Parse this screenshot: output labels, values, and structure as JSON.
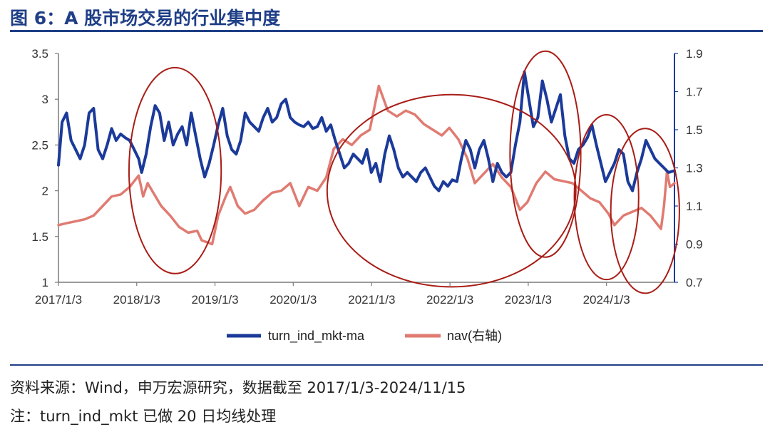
{
  "title": "图 6：A 股市场交易的行业集中度",
  "source_note": "资料来源：Wind，申万宏源研究，数据截至 2017/1/3-2024/11/15",
  "footnote": "注：turn_ind_mkt 已做 20 日均线处理",
  "colors": {
    "accent": "#1f3f87",
    "series1": "#1b3a9a",
    "series2": "#e07b72",
    "ellipse": "#a81d16"
  },
  "chart_data": {
    "type": "line",
    "x_ticks": [
      "2017/1/3",
      "2018/1/3",
      "2019/1/3",
      "2020/1/3",
      "2021/1/3",
      "2022/1/3",
      "2023/1/3",
      "2024/1/3"
    ],
    "xlim": [
      "2017/1/3",
      "2024/11/15"
    ],
    "y_left": {
      "ticks": [
        "1",
        "1.5",
        "2",
        "2.5",
        "3",
        "3.5"
      ],
      "lim": [
        1,
        3.5
      ]
    },
    "y_right": {
      "ticks": [
        "0.7",
        "0.9",
        "1.1",
        "1.3",
        "1.5",
        "1.7",
        "1.9"
      ],
      "lim": [
        0.7,
        1.9
      ]
    },
    "grid": false,
    "legend_position": "bottom",
    "series": [
      {
        "name": "turn_ind_mkt-ma",
        "axis": "left",
        "points": [
          [
            "2017/1/3",
            2.28
          ],
          [
            "2017/1/20",
            2.75
          ],
          [
            "2017/2/10",
            2.85
          ],
          [
            "2017/3/3",
            2.55
          ],
          [
            "2017/3/24",
            2.45
          ],
          [
            "2017/4/14",
            2.35
          ],
          [
            "2017/5/5",
            2.5
          ],
          [
            "2017/5/26",
            2.85
          ],
          [
            "2017/6/16",
            2.9
          ],
          [
            "2017/7/7",
            2.45
          ],
          [
            "2017/7/28",
            2.35
          ],
          [
            "2017/8/18",
            2.5
          ],
          [
            "2017/9/8",
            2.68
          ],
          [
            "2017/9/29",
            2.55
          ],
          [
            "2017/10/20",
            2.62
          ],
          [
            "2017/11/10",
            2.58
          ],
          [
            "2017/12/1",
            2.55
          ],
          [
            "2017/12/22",
            2.45
          ],
          [
            "2018/1/12",
            2.35
          ],
          [
            "2018/1/26",
            2.2
          ],
          [
            "2018/2/16",
            2.4
          ],
          [
            "2018/3/9",
            2.7
          ],
          [
            "2018/3/30",
            2.93
          ],
          [
            "2018/4/20",
            2.85
          ],
          [
            "2018/5/11",
            2.55
          ],
          [
            "2018/6/1",
            2.75
          ],
          [
            "2018/6/22",
            2.5
          ],
          [
            "2018/7/13",
            2.62
          ],
          [
            "2018/8/3",
            2.7
          ],
          [
            "2018/8/24",
            2.5
          ],
          [
            "2018/9/14",
            2.85
          ],
          [
            "2018/10/5",
            2.6
          ],
          [
            "2018/10/26",
            2.35
          ],
          [
            "2018/11/16",
            2.15
          ],
          [
            "2018/12/7",
            2.3
          ],
          [
            "2018/12/28",
            2.5
          ],
          [
            "2019/1/18",
            2.72
          ],
          [
            "2019/2/8",
            2.9
          ],
          [
            "2019/3/1",
            2.6
          ],
          [
            "2019/3/22",
            2.45
          ],
          [
            "2019/4/12",
            2.4
          ],
          [
            "2019/5/3",
            2.55
          ],
          [
            "2019/5/24",
            2.85
          ],
          [
            "2019/6/14",
            2.75
          ],
          [
            "2019/7/5",
            2.7
          ],
          [
            "2019/7/26",
            2.65
          ],
          [
            "2019/8/16",
            2.8
          ],
          [
            "2019/9/6",
            2.9
          ],
          [
            "2019/9/27",
            2.75
          ],
          [
            "2019/10/18",
            2.8
          ],
          [
            "2019/11/8",
            2.95
          ],
          [
            "2019/11/29",
            3.0
          ],
          [
            "2019/12/20",
            2.8
          ],
          [
            "2020/1/10",
            2.75
          ],
          [
            "2020/1/31",
            2.72
          ],
          [
            "2020/2/21",
            2.7
          ],
          [
            "2020/3/13",
            2.75
          ],
          [
            "2020/4/3",
            2.68
          ],
          [
            "2020/4/24",
            2.7
          ],
          [
            "2020/5/15",
            2.8
          ],
          [
            "2020/6/5",
            2.65
          ],
          [
            "2020/6/26",
            2.72
          ],
          [
            "2020/7/17",
            2.55
          ],
          [
            "2020/8/7",
            2.4
          ],
          [
            "2020/8/28",
            2.25
          ],
          [
            "2020/9/18",
            2.3
          ],
          [
            "2020/10/9",
            2.4
          ],
          [
            "2020/10/30",
            2.35
          ],
          [
            "2020/11/20",
            2.3
          ],
          [
            "2020/12/11",
            2.45
          ],
          [
            "2021/1/1",
            2.2
          ],
          [
            "2021/1/22",
            2.3
          ],
          [
            "2021/2/12",
            2.1
          ],
          [
            "2021/3/5",
            2.4
          ],
          [
            "2021/3/26",
            2.6
          ],
          [
            "2021/4/16",
            2.45
          ],
          [
            "2021/5/7",
            2.25
          ],
          [
            "2021/5/28",
            2.15
          ],
          [
            "2021/6/18",
            2.2
          ],
          [
            "2021/7/9",
            2.15
          ],
          [
            "2021/7/30",
            2.1
          ],
          [
            "2021/8/20",
            2.2
          ],
          [
            "2021/9/10",
            2.25
          ],
          [
            "2021/10/1",
            2.15
          ],
          [
            "2021/10/22",
            2.05
          ],
          [
            "2021/11/12",
            2.0
          ],
          [
            "2021/12/3",
            2.1
          ],
          [
            "2021/12/24",
            2.05
          ],
          [
            "2022/1/14",
            2.12
          ],
          [
            "2022/2/4",
            2.1
          ],
          [
            "2022/2/25",
            2.35
          ],
          [
            "2022/3/18",
            2.55
          ],
          [
            "2022/4/8",
            2.45
          ],
          [
            "2022/4/29",
            2.25
          ],
          [
            "2022/5/20",
            2.45
          ],
          [
            "2022/6/10",
            2.55
          ],
          [
            "2022/7/1",
            2.35
          ],
          [
            "2022/7/22",
            2.1
          ],
          [
            "2022/8/12",
            2.3
          ],
          [
            "2022/9/2",
            2.2
          ],
          [
            "2022/9/23",
            2.15
          ],
          [
            "2022/10/14",
            2.2
          ],
          [
            "2022/11/4",
            2.5
          ],
          [
            "2022/11/25",
            2.75
          ],
          [
            "2022/12/16",
            3.3
          ],
          [
            "2023/1/6",
            3.0
          ],
          [
            "2023/1/27",
            2.7
          ],
          [
            "2023/2/17",
            2.8
          ],
          [
            "2023/3/10",
            3.2
          ],
          [
            "2023/3/31",
            3.0
          ],
          [
            "2023/4/21",
            2.75
          ],
          [
            "2023/5/12",
            2.9
          ],
          [
            "2023/6/2",
            3.05
          ],
          [
            "2023/6/23",
            2.6
          ],
          [
            "2023/7/14",
            2.35
          ],
          [
            "2023/8/4",
            2.3
          ],
          [
            "2023/8/25",
            2.45
          ],
          [
            "2023/9/15",
            2.5
          ],
          [
            "2023/10/6",
            2.58
          ],
          [
            "2023/10/27",
            2.72
          ],
          [
            "2023/11/17",
            2.5
          ],
          [
            "2023/12/8",
            2.3
          ],
          [
            "2023/12/29",
            2.1
          ],
          [
            "2024/1/19",
            2.2
          ],
          [
            "2024/2/9",
            2.3
          ],
          [
            "2024/3/1",
            2.45
          ],
          [
            "2024/3/22",
            2.4
          ],
          [
            "2024/4/12",
            2.1
          ],
          [
            "2024/5/3",
            2.0
          ],
          [
            "2024/5/24",
            2.2
          ],
          [
            "2024/6/14",
            2.35
          ],
          [
            "2024/7/5",
            2.55
          ],
          [
            "2024/7/26",
            2.45
          ],
          [
            "2024/8/16",
            2.35
          ],
          [
            "2024/9/6",
            2.3
          ],
          [
            "2024/9/27",
            2.25
          ],
          [
            "2024/10/18",
            2.2
          ],
          [
            "2024/11/15",
            2.22
          ]
        ]
      },
      {
        "name": "nav(右轴)",
        "axis": "right",
        "points": [
          [
            "2017/1/3",
            1.0
          ],
          [
            "2017/2/10",
            1.01
          ],
          [
            "2017/3/24",
            1.02
          ],
          [
            "2017/5/5",
            1.03
          ],
          [
            "2017/6/16",
            1.05
          ],
          [
            "2017/7/28",
            1.1
          ],
          [
            "2017/9/8",
            1.15
          ],
          [
            "2017/10/20",
            1.16
          ],
          [
            "2017/12/1",
            1.2
          ],
          [
            "2018/1/12",
            1.26
          ],
          [
            "2018/2/2",
            1.15
          ],
          [
            "2018/2/23",
            1.22
          ],
          [
            "2018/3/16",
            1.18
          ],
          [
            "2018/4/27",
            1.1
          ],
          [
            "2018/6/8",
            1.05
          ],
          [
            "2018/7/20",
            0.99
          ],
          [
            "2018/8/31",
            0.96
          ],
          [
            "2018/10/12",
            0.97
          ],
          [
            "2018/11/2",
            0.92
          ],
          [
            "2018/12/21",
            0.9
          ],
          [
            "2019/1/18",
            1.05
          ],
          [
            "2019/2/22",
            1.15
          ],
          [
            "2019/3/15",
            1.2
          ],
          [
            "2019/4/19",
            1.1
          ],
          [
            "2019/5/24",
            1.06
          ],
          [
            "2019/7/5",
            1.08
          ],
          [
            "2019/8/16",
            1.13
          ],
          [
            "2019/9/27",
            1.17
          ],
          [
            "2019/11/8",
            1.18
          ],
          [
            "2019/12/20",
            1.22
          ],
          [
            "2020/1/31",
            1.1
          ],
          [
            "2020/3/13",
            1.2
          ],
          [
            "2020/4/24",
            1.18
          ],
          [
            "2020/6/5",
            1.25
          ],
          [
            "2020/7/10",
            1.4
          ],
          [
            "2020/8/21",
            1.45
          ],
          [
            "2020/10/2",
            1.42
          ],
          [
            "2020/11/13",
            1.47
          ],
          [
            "2020/12/25",
            1.5
          ],
          [
            "2021/2/5",
            1.73
          ],
          [
            "2021/3/19",
            1.6
          ],
          [
            "2021/4/30",
            1.57
          ],
          [
            "2021/6/11",
            1.6
          ],
          [
            "2021/7/23",
            1.58
          ],
          [
            "2021/9/3",
            1.53
          ],
          [
            "2021/10/15",
            1.5
          ],
          [
            "2021/11/26",
            1.47
          ],
          [
            "2021/12/31",
            1.51
          ],
          [
            "2022/2/11",
            1.45
          ],
          [
            "2022/3/25",
            1.35
          ],
          [
            "2022/4/29",
            1.22
          ],
          [
            "2022/6/10",
            1.27
          ],
          [
            "2022/7/22",
            1.32
          ],
          [
            "2022/9/2",
            1.25
          ],
          [
            "2022/10/14",
            1.2
          ],
          [
            "2022/11/25",
            1.08
          ],
          [
            "2022/12/30",
            1.12
          ],
          [
            "2023/2/10",
            1.22
          ],
          [
            "2023/3/24",
            1.28
          ],
          [
            "2023/5/5",
            1.24
          ],
          [
            "2023/6/16",
            1.23
          ],
          [
            "2023/7/28",
            1.22
          ],
          [
            "2023/9/8",
            1.18
          ],
          [
            "2023/10/20",
            1.14
          ],
          [
            "2023/12/1",
            1.12
          ],
          [
            "2024/1/12",
            1.06
          ],
          [
            "2024/2/9",
            1.0
          ],
          [
            "2024/3/22",
            1.05
          ],
          [
            "2024/5/3",
            1.07
          ],
          [
            "2024/6/14",
            1.09
          ],
          [
            "2024/7/26",
            1.05
          ],
          [
            "2024/9/13",
            0.98
          ],
          [
            "2024/9/27",
            1.1
          ],
          [
            "2024/10/11",
            1.28
          ],
          [
            "2024/10/25",
            1.2
          ],
          [
            "2024/11/15",
            1.22
          ]
        ]
      }
    ],
    "highlight_ellipses": [
      {
        "x_center": "2018/7/1",
        "x_width_days": 430,
        "y_center": 2.22,
        "y_height": 2.25
      },
      {
        "x_center": "2022/1/10",
        "x_width_days": 1160,
        "y_center": 2.0,
        "y_height": 2.1
      },
      {
        "x_center": "2023/3/24",
        "x_width_days": 330,
        "y_center": 2.4,
        "y_height": 2.25
      },
      {
        "x_center": "2024/1/3",
        "x_width_days": 300,
        "y_center": 1.93,
        "y_height": 1.8
      },
      {
        "x_center": "2024/7/1",
        "x_width_days": 320,
        "y_center": 1.78,
        "y_height": 1.8
      }
    ]
  }
}
